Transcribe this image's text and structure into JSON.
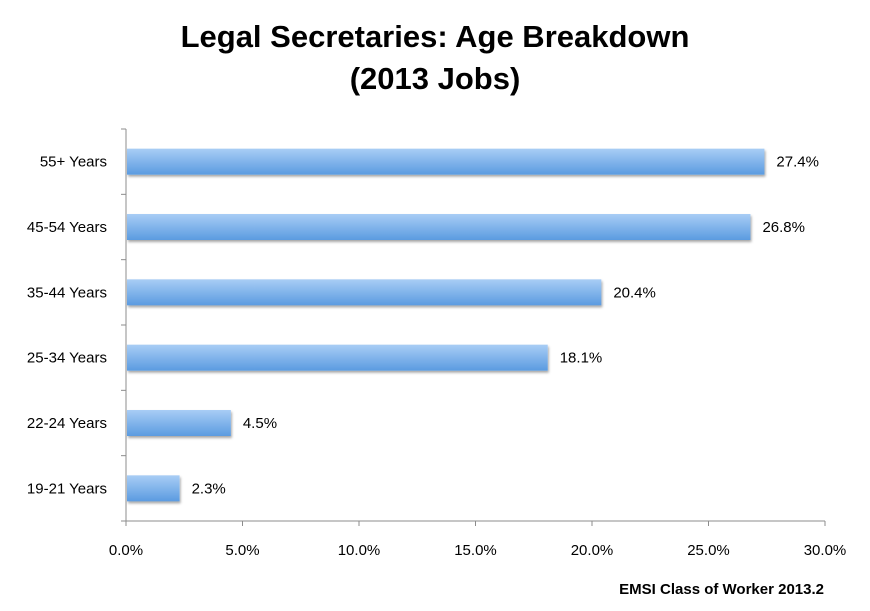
{
  "chart_data": {
    "type": "bar",
    "orientation": "horizontal",
    "title": "Legal Secretaries: Age Breakdown",
    "subtitle": "(2013 Jobs)",
    "xlabel": "",
    "ylabel": "",
    "categories": [
      "55+ Years",
      "45-54 Years",
      "35-44 Years",
      "25-34 Years",
      "22-24 Years",
      "19-21 Years"
    ],
    "values": [
      27.4,
      26.8,
      20.4,
      18.1,
      4.5,
      2.3
    ],
    "value_labels": [
      "27.4%",
      "26.8%",
      "20.4%",
      "18.1%",
      "4.5%",
      "2.3%"
    ],
    "xlim": [
      0,
      30
    ],
    "x_ticks": [
      0,
      5,
      10,
      15,
      20,
      25,
      30
    ],
    "x_tick_labels": [
      "0.0%",
      "5.0%",
      "10.0%",
      "15.0%",
      "20.0%",
      "25.0%",
      "30.0%"
    ],
    "grid": false,
    "legend": "none",
    "bar_color": "#5b9be0",
    "bar_color_light": "#a9cdf5",
    "axis_color": "#8c8c8c"
  },
  "source_note": "EMSI Class of Worker 2013.2"
}
